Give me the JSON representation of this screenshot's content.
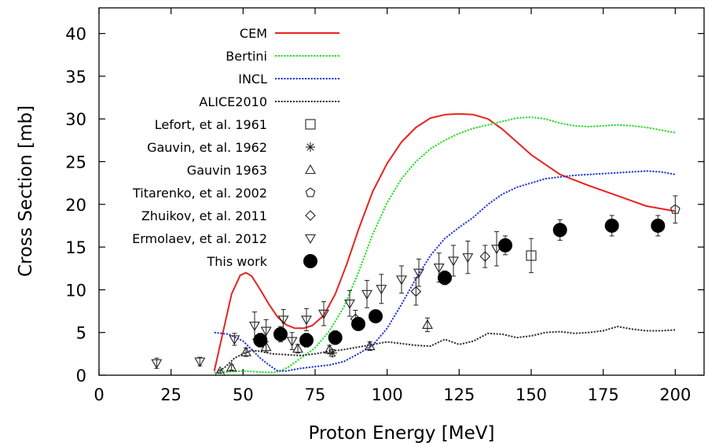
{
  "chart_data": {
    "type": "scatter",
    "title": "",
    "xlabel": "Proton Energy [MeV]",
    "ylabel": "Cross Section [mb]",
    "xlim": [
      0,
      210
    ],
    "ylim": [
      0,
      43
    ],
    "xticks": [
      0,
      25,
      50,
      75,
      100,
      125,
      150,
      175,
      200
    ],
    "yticks": [
      0,
      5,
      10,
      15,
      20,
      25,
      30,
      35,
      40
    ],
    "grid": false,
    "legend_position": "top-left",
    "curves": [
      {
        "name": "CEM",
        "color": "#e8231f",
        "dash": "solid",
        "points": [
          [
            40,
            0.5
          ],
          [
            43,
            5
          ],
          [
            46,
            9.5
          ],
          [
            49,
            11.7
          ],
          [
            51,
            12
          ],
          [
            53,
            11.6
          ],
          [
            56,
            10
          ],
          [
            59,
            8.3
          ],
          [
            62,
            6.8
          ],
          [
            65,
            5.9
          ],
          [
            68,
            5.5
          ],
          [
            71,
            5.5
          ],
          [
            74,
            5.8
          ],
          [
            78,
            7
          ],
          [
            82,
            9.5
          ],
          [
            86,
            13
          ],
          [
            90,
            17
          ],
          [
            95,
            21.5
          ],
          [
            100,
            24.8
          ],
          [
            105,
            27.3
          ],
          [
            110,
            29
          ],
          [
            115,
            30.1
          ],
          [
            120,
            30.5
          ],
          [
            125,
            30.6
          ],
          [
            130,
            30.5
          ],
          [
            135,
            30
          ],
          [
            140,
            28.8
          ],
          [
            145,
            27.3
          ],
          [
            150,
            25.8
          ],
          [
            160,
            23.5
          ],
          [
            170,
            22.2
          ],
          [
            180,
            21
          ],
          [
            190,
            19.8
          ],
          [
            200,
            19.2
          ]
        ]
      },
      {
        "name": "Bertini",
        "color": "#22dd22",
        "dash": "dotted",
        "points": [
          [
            40,
            0.3
          ],
          [
            45,
            0.4
          ],
          [
            50,
            0.5
          ],
          [
            55,
            0.4
          ],
          [
            60,
            0.3
          ],
          [
            63,
            0.5
          ],
          [
            66,
            1
          ],
          [
            70,
            2
          ],
          [
            75,
            3.2
          ],
          [
            80,
            5.2
          ],
          [
            85,
            8
          ],
          [
            90,
            12
          ],
          [
            95,
            16.5
          ],
          [
            100,
            20.2
          ],
          [
            105,
            23
          ],
          [
            110,
            25
          ],
          [
            115,
            26.5
          ],
          [
            120,
            27.5
          ],
          [
            125,
            28.3
          ],
          [
            130,
            28.9
          ],
          [
            135,
            29.3
          ],
          [
            140,
            29.7
          ],
          [
            145,
            30.1
          ],
          [
            150,
            30.2
          ],
          [
            155,
            30
          ],
          [
            160,
            29.5
          ],
          [
            165,
            29.2
          ],
          [
            170,
            29.1
          ],
          [
            175,
            29.2
          ],
          [
            180,
            29.3
          ],
          [
            185,
            29.2
          ],
          [
            190,
            29
          ],
          [
            195,
            28.7
          ],
          [
            200,
            28.4
          ]
        ]
      },
      {
        "name": "INCL",
        "color": "#2233dd",
        "dash": "dotted",
        "points": [
          [
            40,
            5
          ],
          [
            45,
            4.8
          ],
          [
            50,
            4
          ],
          [
            53,
            3
          ],
          [
            56,
            2
          ],
          [
            59,
            1.2
          ],
          [
            62,
            0.5
          ],
          [
            65,
            0.5
          ],
          [
            70,
            0.8
          ],
          [
            75,
            1
          ],
          [
            80,
            1.2
          ],
          [
            85,
            1.6
          ],
          [
            90,
            2.5
          ],
          [
            95,
            3.5
          ],
          [
            100,
            5.5
          ],
          [
            105,
            8.3
          ],
          [
            110,
            11.3
          ],
          [
            115,
            14
          ],
          [
            120,
            16
          ],
          [
            125,
            17.3
          ],
          [
            130,
            18.5
          ],
          [
            135,
            20
          ],
          [
            140,
            21.2
          ],
          [
            145,
            22
          ],
          [
            150,
            22.5
          ],
          [
            155,
            23
          ],
          [
            160,
            23.2
          ],
          [
            165,
            23.4
          ],
          [
            170,
            23.5
          ],
          [
            175,
            23.6
          ],
          [
            180,
            23.7
          ],
          [
            185,
            23.8
          ],
          [
            190,
            23.9
          ],
          [
            195,
            23.8
          ],
          [
            200,
            23.5
          ]
        ]
      },
      {
        "name": "ALICE2010",
        "color": "#333333",
        "dash": "dotted",
        "points": [
          [
            41,
            0.3
          ],
          [
            44,
            1
          ],
          [
            47,
            2
          ],
          [
            50,
            2.5
          ],
          [
            53,
            2.9
          ],
          [
            56,
            2.8
          ],
          [
            60,
            2.5
          ],
          [
            65,
            2.4
          ],
          [
            70,
            2.3
          ],
          [
            75,
            2.5
          ],
          [
            80,
            2.8
          ],
          [
            85,
            3
          ],
          [
            90,
            3.3
          ],
          [
            95,
            3.6
          ],
          [
            100,
            3.9
          ],
          [
            105,
            3.7
          ],
          [
            110,
            3.5
          ],
          [
            115,
            3.4
          ],
          [
            120,
            4.2
          ],
          [
            125,
            3.6
          ],
          [
            130,
            4
          ],
          [
            135,
            4.9
          ],
          [
            140,
            4.8
          ],
          [
            145,
            4.4
          ],
          [
            150,
            4.6
          ],
          [
            155,
            5
          ],
          [
            160,
            5.1
          ],
          [
            165,
            4.9
          ],
          [
            170,
            5
          ],
          [
            175,
            5.2
          ],
          [
            180,
            5.7
          ],
          [
            185,
            5.4
          ],
          [
            190,
            5.2
          ],
          [
            195,
            5.2
          ],
          [
            200,
            5.3
          ]
        ]
      }
    ],
    "datasets": [
      {
        "name": "Lefort, et al. 1961",
        "marker": "square",
        "points": [
          [
            150,
            14,
            2
          ]
        ]
      },
      {
        "name": "Gauvin, et al. 1962",
        "marker": "star",
        "points": [
          [
            81,
            2.6,
            0.4
          ]
        ]
      },
      {
        "name": "Gauvin 1963",
        "marker": "triangle-up",
        "points": [
          [
            42,
            0.4,
            0.2
          ],
          [
            46,
            0.9,
            0.3
          ],
          [
            51,
            2.7,
            0.5
          ],
          [
            58,
            3.3,
            0.6
          ],
          [
            69,
            3.1,
            0.5
          ],
          [
            80,
            3,
            0.5
          ],
          [
            94,
            3.4,
            0.5
          ],
          [
            114,
            5.9,
            0.8
          ]
        ]
      },
      {
        "name": "Titarenko, et al. 2002",
        "marker": "pentagon",
        "points": [
          [
            200,
            19.4,
            1.6
          ]
        ]
      },
      {
        "name": "Zhuikov, et al. 2011",
        "marker": "diamond",
        "points": [
          [
            89,
            6.6,
            1
          ],
          [
            110,
            9.8,
            1.6
          ],
          [
            134,
            13.9,
            1.3
          ]
        ]
      },
      {
        "name": "Ermolaev, et al. 2012",
        "marker": "triangle-down",
        "points": [
          [
            20,
            1.4,
            0.6
          ],
          [
            35,
            1.6,
            0.5
          ],
          [
            47,
            4.2,
            0.7
          ],
          [
            54,
            5.8,
            1.6
          ],
          [
            58,
            5.2,
            1.3
          ],
          [
            64,
            6.5,
            1.2
          ],
          [
            67,
            4,
            1
          ],
          [
            72,
            6.5,
            1.3
          ],
          [
            78,
            7.2,
            1.4
          ],
          [
            87,
            8.4,
            1.5
          ],
          [
            93,
            9.5,
            1.6
          ],
          [
            98,
            10.1,
            1.7
          ],
          [
            105,
            11.2,
            1.6
          ],
          [
            111,
            12,
            1.6
          ],
          [
            118,
            12.6,
            1.7
          ],
          [
            123,
            13.4,
            1.8
          ],
          [
            128,
            13.8,
            1.9
          ],
          [
            138,
            14.8,
            2
          ]
        ]
      },
      {
        "name": "This work",
        "marker": "circle-filled",
        "points": [
          [
            56,
            4.1,
            0.8
          ],
          [
            63,
            4.8,
            0.9
          ],
          [
            72,
            4.1,
            0.8
          ],
          [
            82,
            4.4,
            0.8
          ],
          [
            90,
            6,
            0.7
          ],
          [
            96,
            6.9,
            0.7
          ],
          [
            120,
            11.4,
            0.8
          ],
          [
            141,
            15.2,
            1.1
          ],
          [
            160,
            17,
            1.2
          ],
          [
            178,
            17.5,
            1.2
          ],
          [
            194,
            17.5,
            1.2
          ]
        ]
      }
    ]
  }
}
